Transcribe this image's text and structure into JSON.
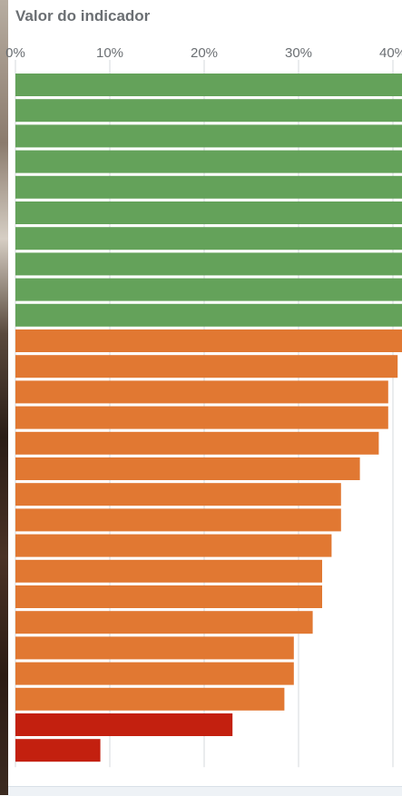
{
  "chart_data": {
    "type": "bar",
    "orientation": "horizontal",
    "xlabel": "Valor do indicador",
    "xlim": [
      0,
      42
    ],
    "x_tick_values": [
      0,
      10,
      20,
      30,
      40
    ],
    "x_tick_labels": [
      "0%",
      "10%",
      "20%",
      "30%",
      "40%"
    ],
    "grid": true,
    "colors": {
      "above": "#64a25a",
      "mid": "#e17832",
      "low": "#c3200f",
      "grid": "#d5d9de",
      "tick_text": "#6b6f73"
    },
    "bars": [
      {
        "value": 42,
        "color_key": "above"
      },
      {
        "value": 42,
        "color_key": "above"
      },
      {
        "value": 42,
        "color_key": "above"
      },
      {
        "value": 42,
        "color_key": "above"
      },
      {
        "value": 42,
        "color_key": "above"
      },
      {
        "value": 42,
        "color_key": "above"
      },
      {
        "value": 42,
        "color_key": "above"
      },
      {
        "value": 42,
        "color_key": "above"
      },
      {
        "value": 42,
        "color_key": "above"
      },
      {
        "value": 42,
        "color_key": "above"
      },
      {
        "value": 41.5,
        "color_key": "mid"
      },
      {
        "value": 40.5,
        "color_key": "mid"
      },
      {
        "value": 39.5,
        "color_key": "mid"
      },
      {
        "value": 39.5,
        "color_key": "mid"
      },
      {
        "value": 38.5,
        "color_key": "mid"
      },
      {
        "value": 36.5,
        "color_key": "mid"
      },
      {
        "value": 34.5,
        "color_key": "mid"
      },
      {
        "value": 34.5,
        "color_key": "mid"
      },
      {
        "value": 33.5,
        "color_key": "mid"
      },
      {
        "value": 32.5,
        "color_key": "mid"
      },
      {
        "value": 32.5,
        "color_key": "mid"
      },
      {
        "value": 31.5,
        "color_key": "mid"
      },
      {
        "value": 29.5,
        "color_key": "mid"
      },
      {
        "value": 29.5,
        "color_key": "mid"
      },
      {
        "value": 28.5,
        "color_key": "mid"
      },
      {
        "value": 23,
        "color_key": "low"
      },
      {
        "value": 9,
        "color_key": "low"
      }
    ]
  }
}
